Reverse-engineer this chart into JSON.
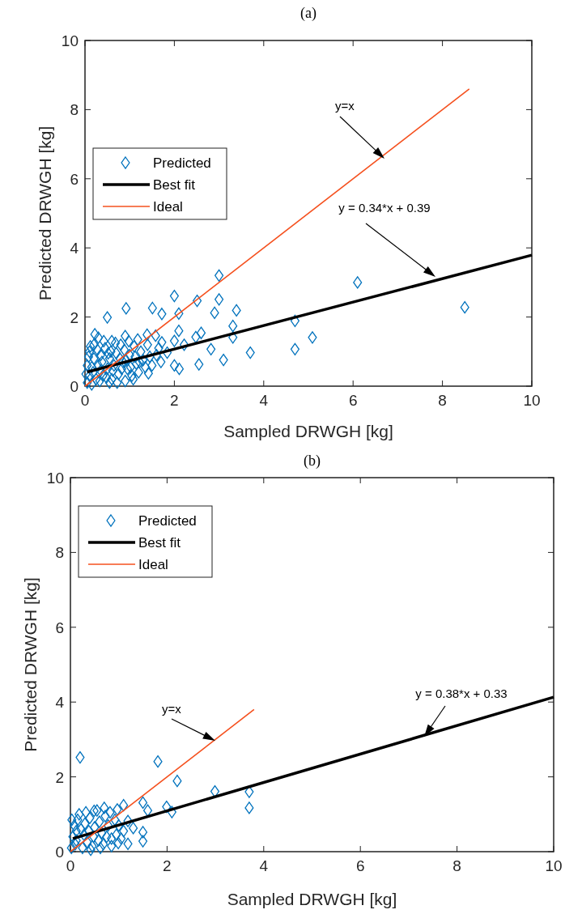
{
  "chart_data": [
    {
      "type": "scatter",
      "title": "(a)",
      "xlabel": "Sampled DRWGH [kg]",
      "ylabel": "Predicted DRWGH [kg]",
      "xlim": [
        0,
        10
      ],
      "ylim": [
        0,
        10
      ],
      "xticks": [
        0,
        2,
        4,
        6,
        8,
        10
      ],
      "yticks": [
        0,
        2,
        4,
        6,
        8,
        10
      ],
      "legend": "top left",
      "annotations": [
        "y=x",
        "y = 0.34*x + 0.39"
      ],
      "series": [
        {
          "name": "Predicted",
          "marker": "diamond",
          "color": "#0072bd",
          "x": [
            3.0,
            2.0,
            2.51,
            3.0,
            0.92,
            1.51,
            1.72,
            0.5,
            2.1,
            2.9,
            3.39,
            2.1,
            2.6,
            3.31,
            3.31,
            4.7,
            5.09,
            4.7,
            3.7,
            2.82,
            3.1,
            2.55,
            2.0,
            2.11,
            2.48,
            2.22,
            1.58,
            1.72,
            1.84,
            2.0,
            1.39,
            1.42,
            6.1,
            8.5,
            0.05,
            0.1,
            0.15,
            0.2,
            0.1,
            0.2,
            0.3,
            0.25,
            0.3,
            0.35,
            0.4,
            0.45,
            0.5,
            0.55,
            0.6,
            0.6,
            0.65,
            0.7,
            0.75,
            0.8,
            0.85,
            0.9,
            0.9,
            0.95,
            1.0,
            1.05,
            1.1,
            1.15,
            1.2,
            1.25,
            1.3,
            1.35,
            1.4,
            1.45,
            1.5,
            0.05,
            0.08,
            0.12,
            0.18,
            0.22,
            0.28,
            0.33,
            0.38,
            0.42,
            0.48,
            0.52,
            0.58,
            0.62,
            0.68,
            0.72,
            0.78,
            0.82,
            0.88,
            0.92,
            0.98,
            1.02,
            1.08,
            1.12,
            1.18,
            1.22,
            0.02,
            0.15,
            0.35,
            0.55,
            1.6,
            1.7,
            1.65
          ],
          "values": [
            3.2,
            2.61,
            2.47,
            2.51,
            2.25,
            2.26,
            2.09,
            1.99,
            2.1,
            2.12,
            2.19,
            1.6,
            1.54,
            1.74,
            1.41,
            1.89,
            1.41,
            1.07,
            0.97,
            1.07,
            0.76,
            0.63,
            0.6,
            0.5,
            1.42,
            1.2,
            1.46,
            1.27,
            0.97,
            1.31,
            1.49,
            0.37,
            3.0,
            2.28,
            0.1,
            0.3,
            0.55,
            0.8,
            1.0,
            1.2,
            1.4,
            0.2,
            0.6,
            0.9,
            0.3,
            1.1,
            0.5,
            0.8,
            0.2,
            1.3,
            0.6,
            0.95,
            0.35,
            1.2,
            0.7,
            0.15,
            1.45,
            0.5,
            0.9,
            0.3,
            1.15,
            0.65,
            0.4,
            1.0,
            0.75,
            0.55,
            1.2,
            0.85,
            0.6,
            0.6,
            0.85,
            1.15,
            0.4,
            1.5,
            1.05,
            0.15,
            0.7,
            1.3,
            0.25,
            0.95,
            1.0,
            0.45,
            1.25,
            0.1,
            0.8,
            0.5,
            1.05,
            0.75,
            1.3,
            0.55,
            0.2,
            0.85,
            1.35,
            0.7,
            0.35,
            0.05,
            0.45,
            0.1,
            0.9,
            0.7,
            1.1
          ]
        },
        {
          "name": "Best fit",
          "type": "line",
          "color": "#000000",
          "x": [
            0.05,
            10
          ],
          "values": [
            0.41,
            3.79
          ]
        },
        {
          "name": "Ideal",
          "type": "line",
          "color": "#f5501e",
          "x": [
            0,
            8.6
          ],
          "values": [
            0,
            8.6
          ]
        }
      ]
    },
    {
      "type": "scatter",
      "title": "(b)",
      "xlabel": "Sampled DRWGH [kg]",
      "ylabel": "Predicted DRWGH [kg]",
      "xlim": [
        0,
        10
      ],
      "ylim": [
        0,
        10
      ],
      "xticks": [
        0,
        2,
        4,
        6,
        8,
        10
      ],
      "yticks": [
        0,
        2,
        4,
        6,
        8,
        10
      ],
      "legend": "top left",
      "annotations": [
        "y=x",
        "y = 0.38*x + 0.33"
      ],
      "series": [
        {
          "name": "Predicted",
          "marker": "diamond",
          "color": "#0072bd",
          "x": [
            0.2,
            1.81,
            2.21,
            2.99,
            3.7,
            3.7,
            1.99,
            2.1,
            1.5,
            1.6,
            1.3,
            1.5,
            1.5,
            1.19,
            1.19,
            1.1,
            0.97,
            0.7,
            0.49,
            0.99,
            0.85,
            0.02,
            0.05,
            0.08,
            0.1,
            0.12,
            0.15,
            0.22,
            0.25,
            0.28,
            0.3,
            0.35,
            0.38,
            0.4,
            0.45,
            0.48,
            0.5,
            0.55,
            0.58,
            0.6,
            0.65,
            0.68,
            0.72,
            0.75,
            0.78,
            0.82,
            0.85,
            0.92,
            0.95,
            1.0,
            1.05,
            0.03,
            0.18,
            0.32,
            0.42,
            0.62,
            0.12,
            1.1
          ],
          "values": [
            2.52,
            2.41,
            1.89,
            1.61,
            1.6,
            1.17,
            1.2,
            1.06,
            1.31,
            1.1,
            0.63,
            0.52,
            0.28,
            0.82,
            0.21,
            1.24,
            1.13,
            1.17,
            1.09,
            0.23,
            0.15,
            0.1,
            0.4,
            0.7,
            0.2,
            0.55,
            0.85,
            0.6,
            0.1,
            0.45,
            0.75,
            0.25,
            0.55,
            0.9,
            0.15,
            0.4,
            0.65,
            1.1,
            0.3,
            0.8,
            0.5,
            0.2,
            0.95,
            0.4,
            0.7,
            1.05,
            0.35,
            0.85,
            0.45,
            0.7,
            0.35,
            0.85,
            1.0,
            1.05,
            0.05,
            0.1,
            0.3,
            0.55
          ]
        },
        {
          "name": "Best fit",
          "type": "line",
          "color": "#000000",
          "x": [
            0.05,
            10
          ],
          "values": [
            0.35,
            4.13
          ]
        },
        {
          "name": "Ideal",
          "type": "line",
          "color": "#f5501e",
          "x": [
            0,
            3.8
          ],
          "values": [
            0,
            3.8
          ]
        }
      ]
    }
  ]
}
